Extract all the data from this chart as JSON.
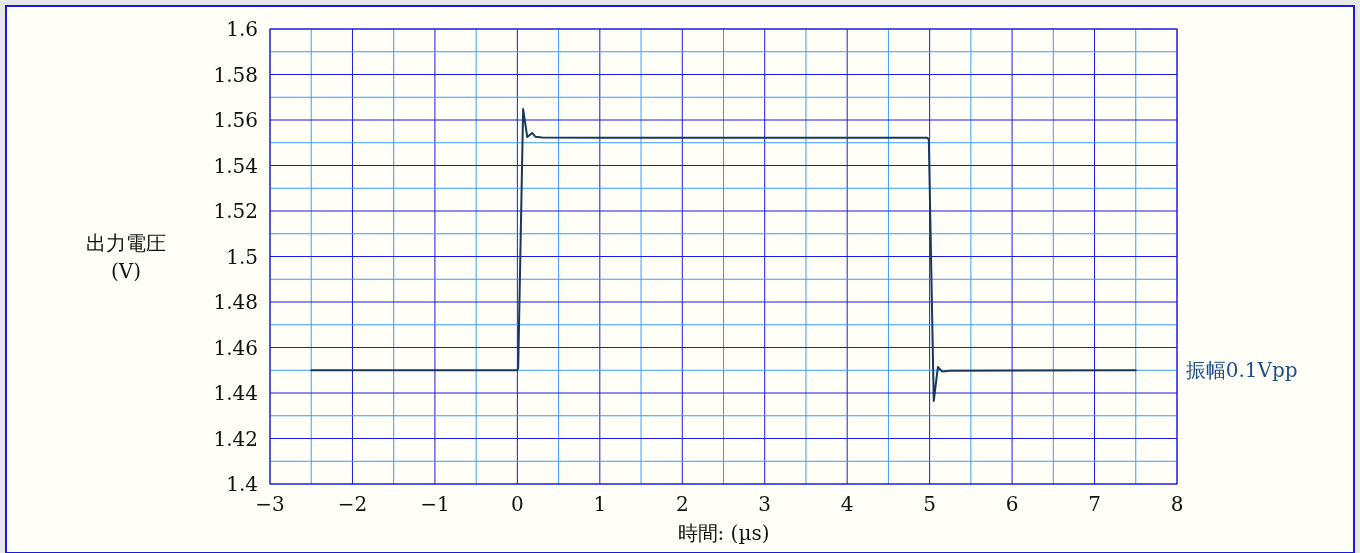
{
  "chart_data": {
    "type": "line",
    "xlabel": "時間: (µs)",
    "ylabel": "出力電圧\n(V)",
    "series": [
      {
        "color": "#17375e",
        "x": [
          -2.5,
          0.0,
          0.01,
          0.07,
          0.12,
          0.18,
          0.22,
          0.3,
          1.0,
          4.97,
          4.99,
          5.05,
          5.1,
          5.15,
          5.25,
          7.5
        ],
        "values": [
          1.45,
          1.45,
          1.451,
          1.5648,
          1.5525,
          1.5543,
          1.5526,
          1.5523,
          1.5522,
          1.5522,
          1.5515,
          1.4365,
          1.4514,
          1.4495,
          1.4498,
          1.45
        ]
      }
    ],
    "xlim": [
      -3,
      8
    ],
    "xticks": [
      {
        "value": -3,
        "label": "−3"
      },
      {
        "value": -2.5,
        "label": null
      },
      {
        "value": -2,
        "label": "−2"
      },
      {
        "value": -1.5,
        "label": null
      },
      {
        "value": -1,
        "label": "−1"
      },
      {
        "value": -0.5,
        "label": null
      },
      0,
      {
        "value": 0.5,
        "label": null
      },
      1,
      {
        "value": 1.5,
        "label": null
      },
      2,
      {
        "value": 2.5,
        "label": null
      },
      3,
      {
        "value": 3.5,
        "label": null
      },
      4,
      {
        "value": 4.5,
        "label": null
      },
      5,
      {
        "value": 5.5,
        "label": null
      },
      6,
      {
        "value": 6.5,
        "label": null
      },
      7,
      {
        "value": 7.5,
        "label": null
      },
      8
    ],
    "ylim": [
      1.4,
      1.6
    ],
    "yticks": [
      1.4,
      {
        "value": 1.41,
        "label": null
      },
      1.42,
      {
        "value": 1.43,
        "label": null
      },
      1.44,
      {
        "value": 1.45,
        "label": null
      },
      1.46,
      {
        "value": 1.47,
        "label": null
      },
      1.48,
      {
        "value": 1.49,
        "label": null
      },
      1.5,
      {
        "value": 1.51,
        "label": null
      },
      1.52,
      {
        "value": 1.53,
        "label": null
      },
      1.54,
      {
        "value": 1.55,
        "label": null
      },
      1.56,
      {
        "value": 1.57,
        "label": null
      },
      1.58,
      {
        "value": 1.59,
        "label": null
      },
      1.6
    ],
    "grid": true,
    "line_style": "solid",
    "marker": "none",
    "annotations": [
      {
        "text": "振幅0.1Vpp",
        "x": 7.5,
        "y": 1.45
      }
    ]
  }
}
